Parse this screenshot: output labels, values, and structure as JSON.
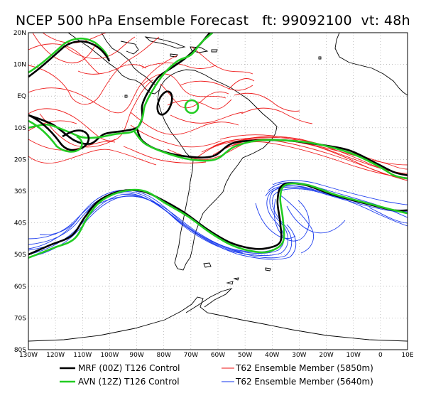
{
  "title": "NCEP 500 hPa Ensemble Forecast   ft: 99092100  vt: 48h",
  "colors": {
    "mrf": "#000000",
    "avn": "#22cc22",
    "red_members": "#ee1111",
    "blue_members": "#1133ee",
    "coast": "#000000",
    "grid": "#999999"
  },
  "map": {
    "projection": "lat-lon",
    "lon_range": [
      -130,
      10
    ],
    "lat_range": [
      -80,
      20
    ],
    "grid": "dotted 10-degree lines"
  },
  "axes": {
    "lat_ticks": [
      "20N",
      "10N",
      "EQ",
      "10S",
      "20S",
      "30S",
      "40S",
      "50S",
      "60S",
      "70S",
      "80S"
    ],
    "lon_ticks": [
      "130W",
      "120W",
      "110W",
      "100W",
      "90W",
      "80W",
      "70W",
      "60W",
      "50W",
      "40W",
      "30W",
      "20W",
      "10W",
      "0",
      "10E"
    ]
  },
  "legend": [
    {
      "label": "MRF (00Z) T126 Control",
      "color": "#000000"
    },
    {
      "label": "AVN (12Z) T126 Control",
      "color": "#22cc22"
    },
    {
      "label": "T62 Ensemble Member (5850m)",
      "color": "#ee1111"
    },
    {
      "label": "T62 Ensemble Member (5640m)",
      "color": "#1133ee"
    }
  ],
  "contours": {
    "mrf_5850": [
      [
        -130,
        -6
      ],
      [
        -121,
        -9
      ],
      [
        -113,
        -14
      ],
      [
        -107,
        -15
      ],
      [
        -102,
        -12
      ],
      [
        -95,
        -11
      ],
      [
        -90,
        -10
      ],
      [
        -88,
        -7
      ],
      [
        -88,
        -3
      ],
      [
        -86,
        1
      ],
      [
        -82,
        6
      ],
      [
        -77,
        9
      ],
      [
        -72,
        12
      ],
      [
        -67,
        16
      ],
      [
        -63,
        20
      ]
    ],
    "mrf_5850_south": [
      [
        -90,
        -10
      ],
      [
        -88,
        -14
      ],
      [
        -82,
        -17
      ],
      [
        -72,
        -19
      ],
      [
        -62,
        -19
      ],
      [
        -55,
        -15
      ],
      [
        -46,
        -14
      ],
      [
        -35,
        -14
      ],
      [
        -25,
        -15
      ],
      [
        -12,
        -17
      ],
      [
        -2,
        -21
      ],
      [
        5,
        -24
      ],
      [
        10,
        -25
      ]
    ],
    "avn_5850": [
      [
        -130,
        -10
      ],
      [
        -123,
        -9
      ],
      [
        -116,
        -11
      ],
      [
        -110,
        -13
      ],
      [
        -104,
        -13
      ],
      [
        -98,
        -12
      ],
      [
        -91,
        -11
      ],
      [
        -88,
        -7
      ],
      [
        -87,
        -3
      ],
      [
        -84,
        2
      ],
      [
        -80,
        7
      ],
      [
        -75,
        11
      ],
      [
        -70,
        13
      ],
      [
        -66,
        17
      ],
      [
        -62,
        20
      ]
    ],
    "avn_5850_south": [
      [
        -91,
        -11
      ],
      [
        -87,
        -15
      ],
      [
        -79,
        -18
      ],
      [
        -70,
        -20
      ],
      [
        -61,
        -20
      ],
      [
        -54,
        -16
      ],
      [
        -45,
        -14
      ],
      [
        -35,
        -14
      ],
      [
        -24,
        -15
      ],
      [
        -11,
        -18
      ],
      [
        -1,
        -22
      ],
      [
        5,
        -25
      ],
      [
        10,
        -26
      ]
    ],
    "mrf_5640": [
      [
        -130,
        -50
      ],
      [
        -122,
        -47
      ],
      [
        -114,
        -44
      ],
      [
        -109,
        -38
      ],
      [
        -104,
        -33
      ],
      [
        -96,
        -30
      ],
      [
        -88,
        -30
      ],
      [
        -80,
        -33
      ],
      [
        -72,
        -37
      ],
      [
        -64,
        -42
      ],
      [
        -56,
        -46
      ],
      [
        -48,
        -48
      ],
      [
        -42,
        -48
      ],
      [
        -37,
        -46
      ],
      [
        -37,
        -40
      ],
      [
        -38,
        -33
      ],
      [
        -36,
        -28
      ],
      [
        -28,
        -28
      ],
      [
        -18,
        -31
      ],
      [
        -5,
        -34
      ],
      [
        5,
        -36
      ],
      [
        10,
        -36
      ]
    ],
    "avn_5640": [
      [
        -130,
        -51
      ],
      [
        -121,
        -48
      ],
      [
        -113,
        -45
      ],
      [
        -108,
        -38
      ],
      [
        -103,
        -33
      ],
      [
        -95,
        -30
      ],
      [
        -87,
        -30
      ],
      [
        -79,
        -34
      ],
      [
        -71,
        -38
      ],
      [
        -63,
        -43
      ],
      [
        -55,
        -47
      ],
      [
        -47,
        -49
      ],
      [
        -41,
        -49
      ],
      [
        -36,
        -46
      ],
      [
        -36,
        -39
      ],
      [
        -37,
        -32
      ],
      [
        -35,
        -28
      ],
      [
        -27,
        -28
      ],
      [
        -17,
        -31
      ],
      [
        -4,
        -34
      ],
      [
        5,
        -36
      ],
      [
        10,
        -37
      ]
    ]
  }
}
